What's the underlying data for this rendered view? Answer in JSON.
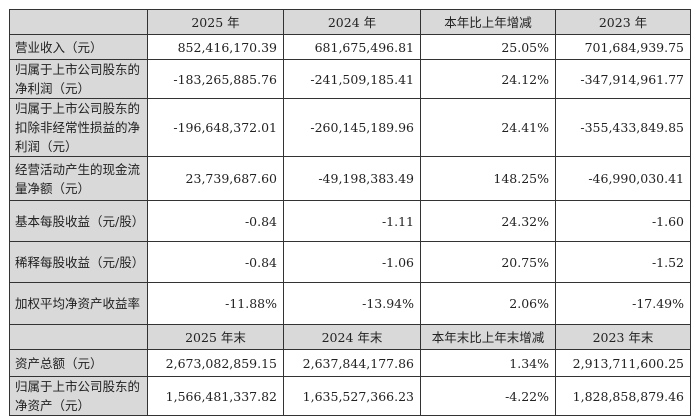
{
  "header1": [
    "",
    "2025 年",
    "2024 年",
    "本年比上年增减",
    "2023 年"
  ],
  "rows1": [
    {
      "label": "营业收入（元）",
      "values": [
        "852,416,170.39",
        "681,675,496.81",
        "25.05%",
        "701,684,939.75"
      ]
    },
    {
      "label": "归属于上市公司股东的净利润（元）",
      "values": [
        "-183,265,885.76",
        "-241,509,185.41",
        "24.12%",
        "-347,914,961.77"
      ]
    },
    {
      "label": "归属于上市公司股东的扣除非经常性损益的净利润（元）",
      "values": [
        "-196,648,372.01",
        "-260,145,189.96",
        "24.41%",
        "-355,433,849.85"
      ]
    },
    {
      "label": "经营活动产生的现金流量净额（元）",
      "values": [
        "23,739,687.60",
        "-49,198,383.49",
        "148.25%",
        "-46,990,030.41"
      ]
    },
    {
      "label": "基本每股收益（元/股）",
      "values": [
        "-0.84",
        "-1.11",
        "24.32%",
        "-1.60"
      ]
    },
    {
      "label": "稀释每股收益（元/股）",
      "values": [
        "-0.84",
        "-1.06",
        "20.75%",
        "-1.52"
      ]
    },
    {
      "label": "加权平均净资产收益率",
      "values": [
        "-11.88%",
        "-13.94%",
        "2.06%",
        "-17.49%"
      ]
    }
  ],
  "header2": [
    "",
    "2025 年末",
    "2024 年末",
    "本年末比上年末增减",
    "2023 年末"
  ],
  "rows2": [
    {
      "label": "资产总额（元）",
      "values": [
        "2,673,082,859.15",
        "2,637,844,177.86",
        "1.34%",
        "2,913,711,600.25"
      ]
    },
    {
      "label": "归属于上市公司股东的净资产（元）",
      "values": [
        "1,566,481,337.82",
        "1,635,527,366.23",
        "-4.22%",
        "1,828,858,879.46"
      ]
    }
  ]
}
